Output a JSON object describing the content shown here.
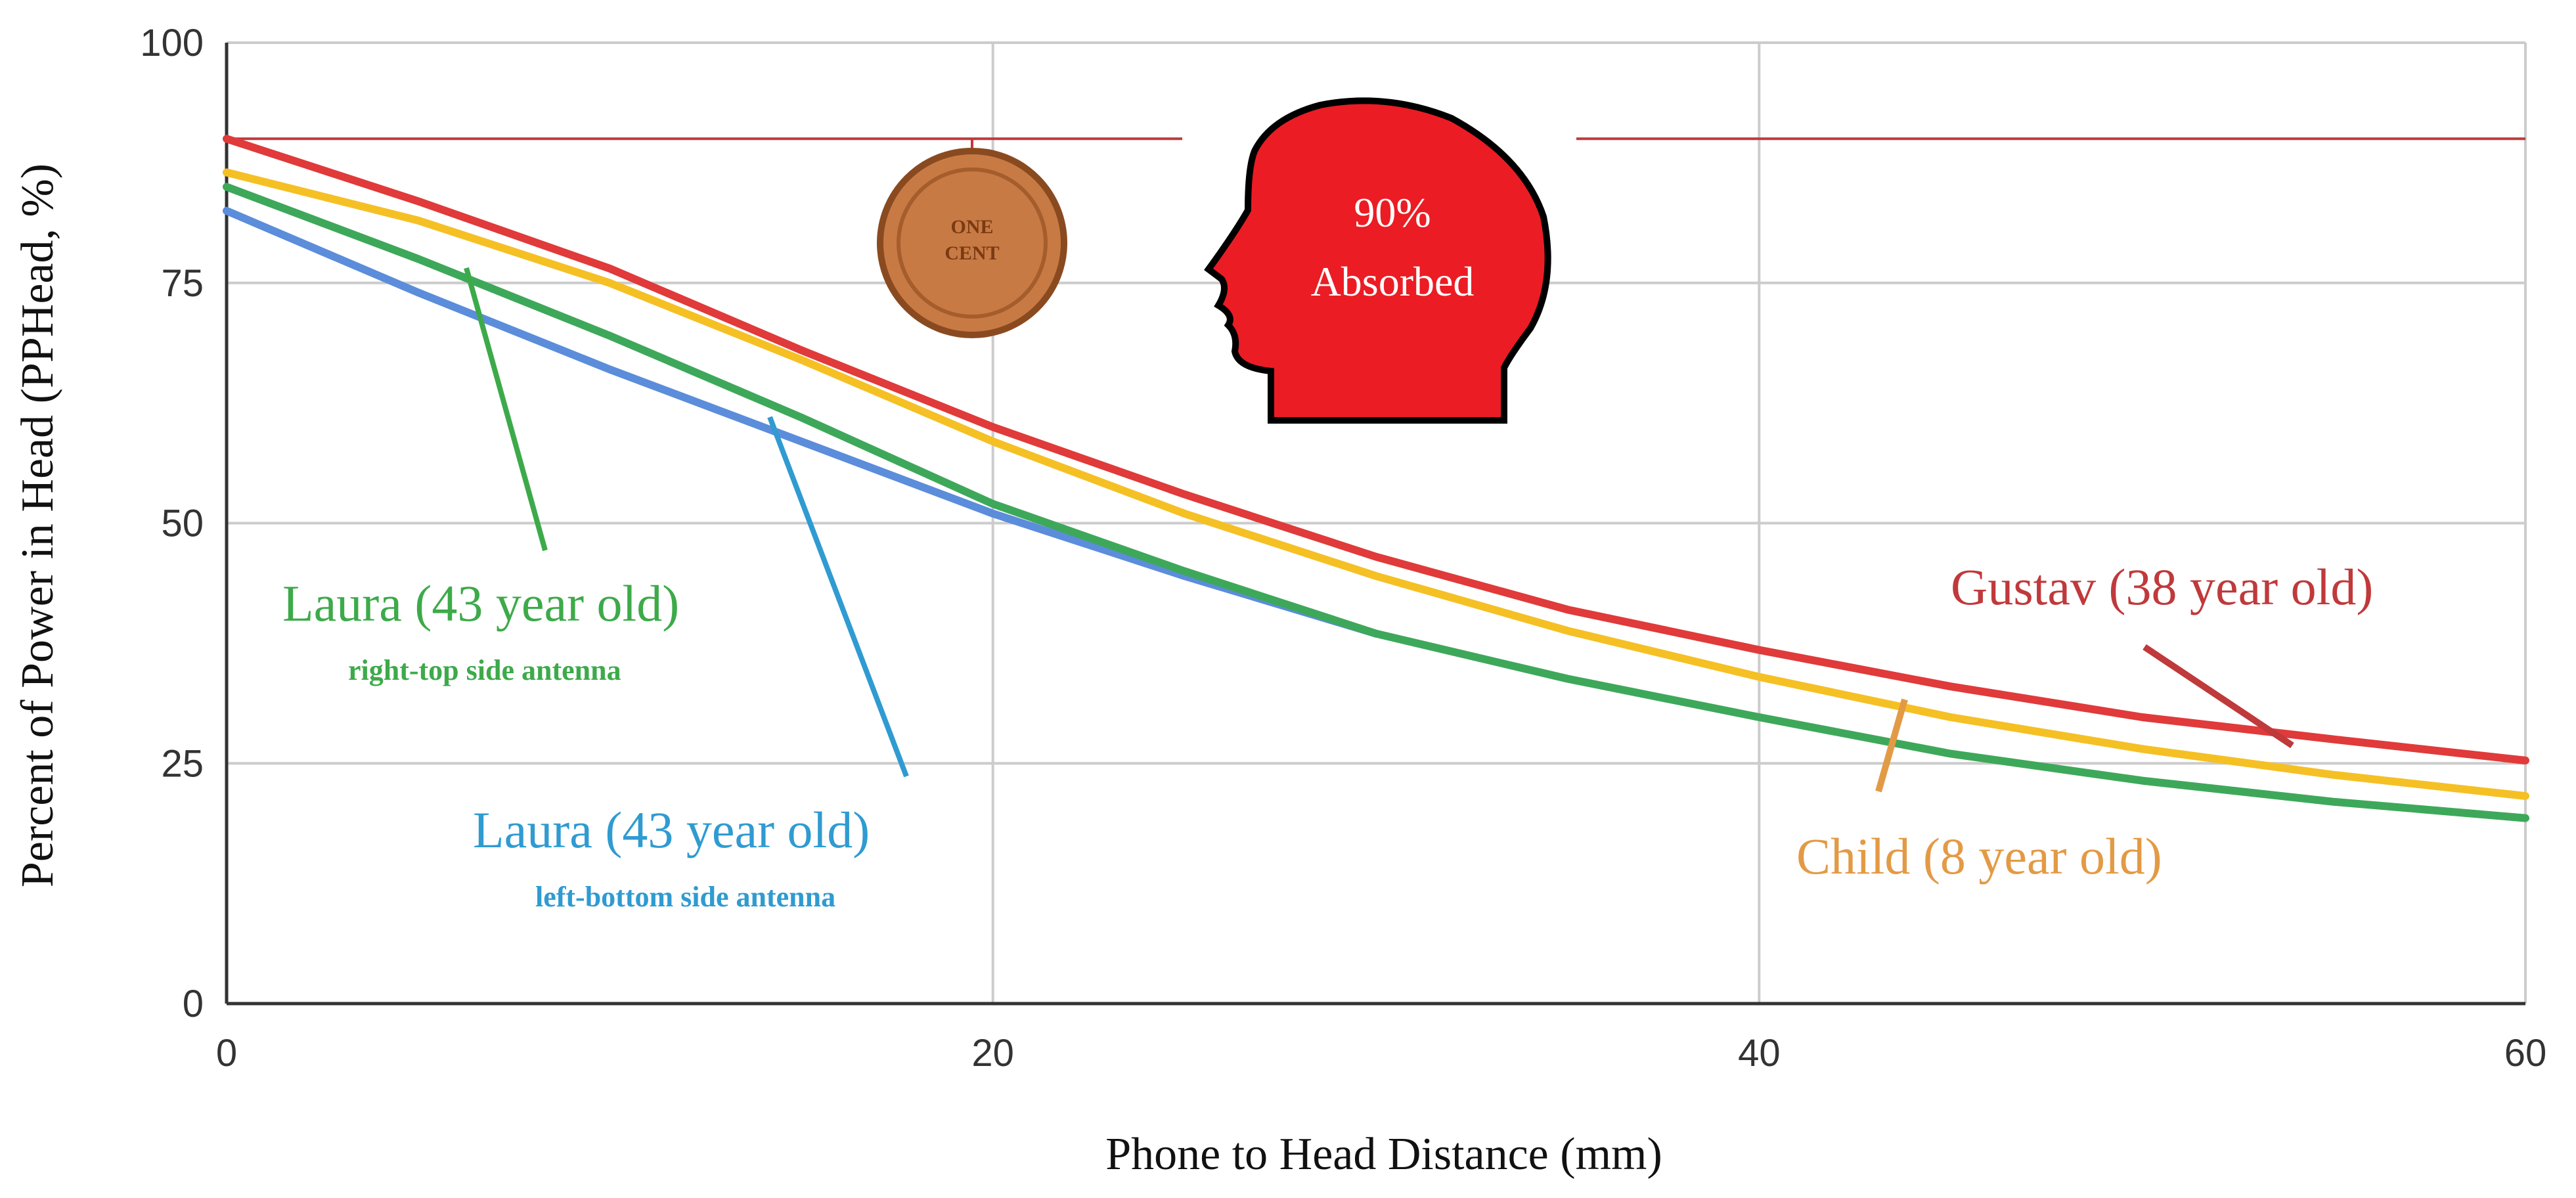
{
  "chart_data": {
    "type": "line",
    "xlabel": "Phone to Head Distance (mm)",
    "ylabel": "Percent of Power in Head (PPHead, %)",
    "xlim": [
      0,
      60
    ],
    "ylim": [
      0,
      100
    ],
    "xticks": [
      0,
      20,
      40,
      60
    ],
    "yticks": [
      0,
      25,
      50,
      75,
      100
    ],
    "grid": true,
    "reference_line": {
      "y": 90
    },
    "series": [
      {
        "name": "Gustav (38 year old)",
        "color": "#e03a3a",
        "label_color": "#c0393b",
        "x": [
          0,
          5,
          10,
          15,
          20,
          25,
          30,
          35,
          40,
          45,
          50,
          55,
          60
        ],
        "y": [
          90,
          83.5,
          76.5,
          68,
          60,
          53,
          46.5,
          41,
          36.8,
          33,
          29.8,
          27.5,
          25.3
        ]
      },
      {
        "name": "Child (8 year old)",
        "color": "#f5c024",
        "label_color": "#e39a45",
        "x": [
          0,
          5,
          10,
          15,
          20,
          25,
          30,
          35,
          40,
          45,
          50,
          55,
          60
        ],
        "y": [
          86.5,
          81.5,
          75,
          67,
          58.5,
          51,
          44.5,
          38.8,
          34,
          29.8,
          26.5,
          23.8,
          21.6
        ]
      },
      {
        "name": "Laura (43 year old)",
        "note": "right-top side antenna",
        "color": "#3ea85a",
        "label_color": "#3daa4a",
        "x": [
          0,
          5,
          10,
          15,
          20,
          25,
          30,
          35,
          40,
          45,
          50,
          55,
          60
        ],
        "y": [
          85,
          77.5,
          69.5,
          61,
          52,
          45,
          38.5,
          33.8,
          29.8,
          26,
          23.2,
          21,
          19.3
        ]
      },
      {
        "name": "Laura (43 year old)",
        "note": "left-bottom side antenna",
        "color": "#5b8ddb",
        "label_color": "#2f9bd1",
        "x": [
          0,
          5,
          10,
          15,
          20,
          25,
          30
        ],
        "y": [
          82.5,
          74,
          66,
          58.5,
          51,
          44.5,
          38.5
        ]
      }
    ],
    "annotations": [
      {
        "name": "head-illustration",
        "text_line1": "90%",
        "text_line2": "Absorbed",
        "fill_color": "#ec1c24"
      },
      {
        "name": "penny-illustration",
        "text_line1": "ONE",
        "text_line2": "CENT",
        "color": "#c87a45"
      }
    ]
  }
}
